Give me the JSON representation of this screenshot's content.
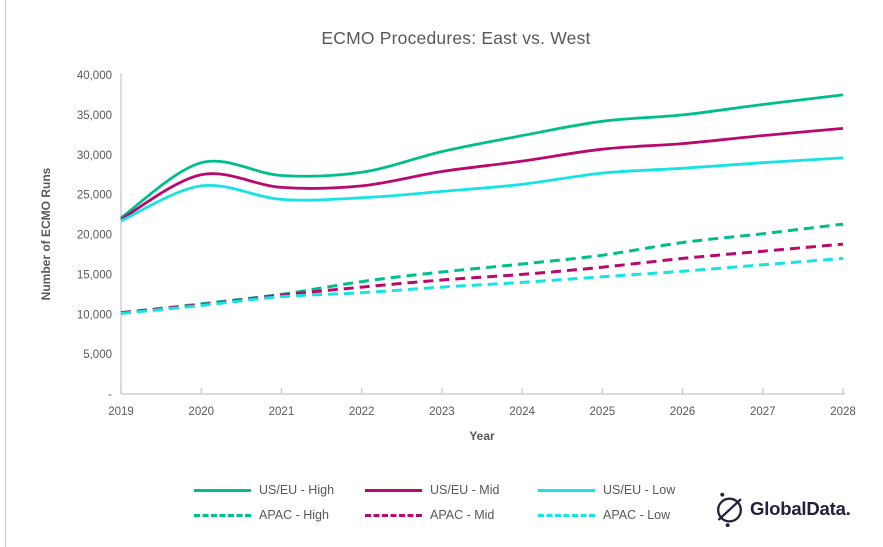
{
  "title": "ECMO Procedures: East vs. West",
  "axes": {
    "y_title": "Number of ECMO Runs",
    "x_title": "Year",
    "y_tick_labels": [
      "40,000",
      "35,000",
      "30,000",
      "25,000",
      "20,000",
      "15,000",
      "10,000",
      "5,000",
      "-"
    ],
    "x_tick_labels": [
      "2019",
      "2020",
      "2021",
      "2022",
      "2023",
      "2024",
      "2025",
      "2026",
      "2027",
      "2028"
    ]
  },
  "chart_data": {
    "type": "line",
    "title": "ECMO Procedures: East vs. West",
    "xlabel": "Year",
    "ylabel": "Number of ECMO Runs",
    "x": [
      2019,
      2020,
      2021,
      2022,
      2023,
      2024,
      2025,
      2026,
      2027,
      2028
    ],
    "ylim": [
      0,
      40000
    ],
    "y_tick_step": 5000,
    "grid": false,
    "legend_position": "bottom",
    "series": [
      {
        "name": "US/EU - High",
        "line_style": "solid",
        "color": "#00be8c",
        "values": [
          22100,
          29000,
          27400,
          27800,
          30400,
          32400,
          34200,
          35000,
          36300,
          37500
        ]
      },
      {
        "name": "US/EU - Mid",
        "line_style": "solid",
        "color": "#ba096e",
        "values": [
          21900,
          27500,
          25900,
          26100,
          27900,
          29200,
          30700,
          31400,
          32400,
          33300
        ]
      },
      {
        "name": "US/EU - Low",
        "line_style": "solid",
        "color": "#15e3e6",
        "values": [
          21700,
          26100,
          24400,
          24600,
          25400,
          26300,
          27700,
          28300,
          29000,
          29600
        ]
      },
      {
        "name": "APAC - High",
        "line_style": "dashed",
        "color": "#00be8c",
        "values": [
          10200,
          11300,
          12500,
          14100,
          15300,
          16300,
          17400,
          19000,
          20100,
          21300
        ]
      },
      {
        "name": "APAC - Mid",
        "line_style": "dashed",
        "color": "#ba096e",
        "values": [
          10200,
          11200,
          12400,
          13400,
          14300,
          15000,
          15900,
          17000,
          17900,
          18800
        ]
      },
      {
        "name": "APAC - Low",
        "line_style": "dashed",
        "color": "#15e3e6",
        "values": [
          10100,
          11100,
          12200,
          12700,
          13400,
          14000,
          14700,
          15400,
          16200,
          17000
        ]
      }
    ]
  },
  "branding": {
    "logo_text": "GlobalData."
  },
  "colors": {
    "title_text": "#595959",
    "axis_text": "#595959",
    "axis_line": "#c6c6c6",
    "logo": "#21203f"
  }
}
